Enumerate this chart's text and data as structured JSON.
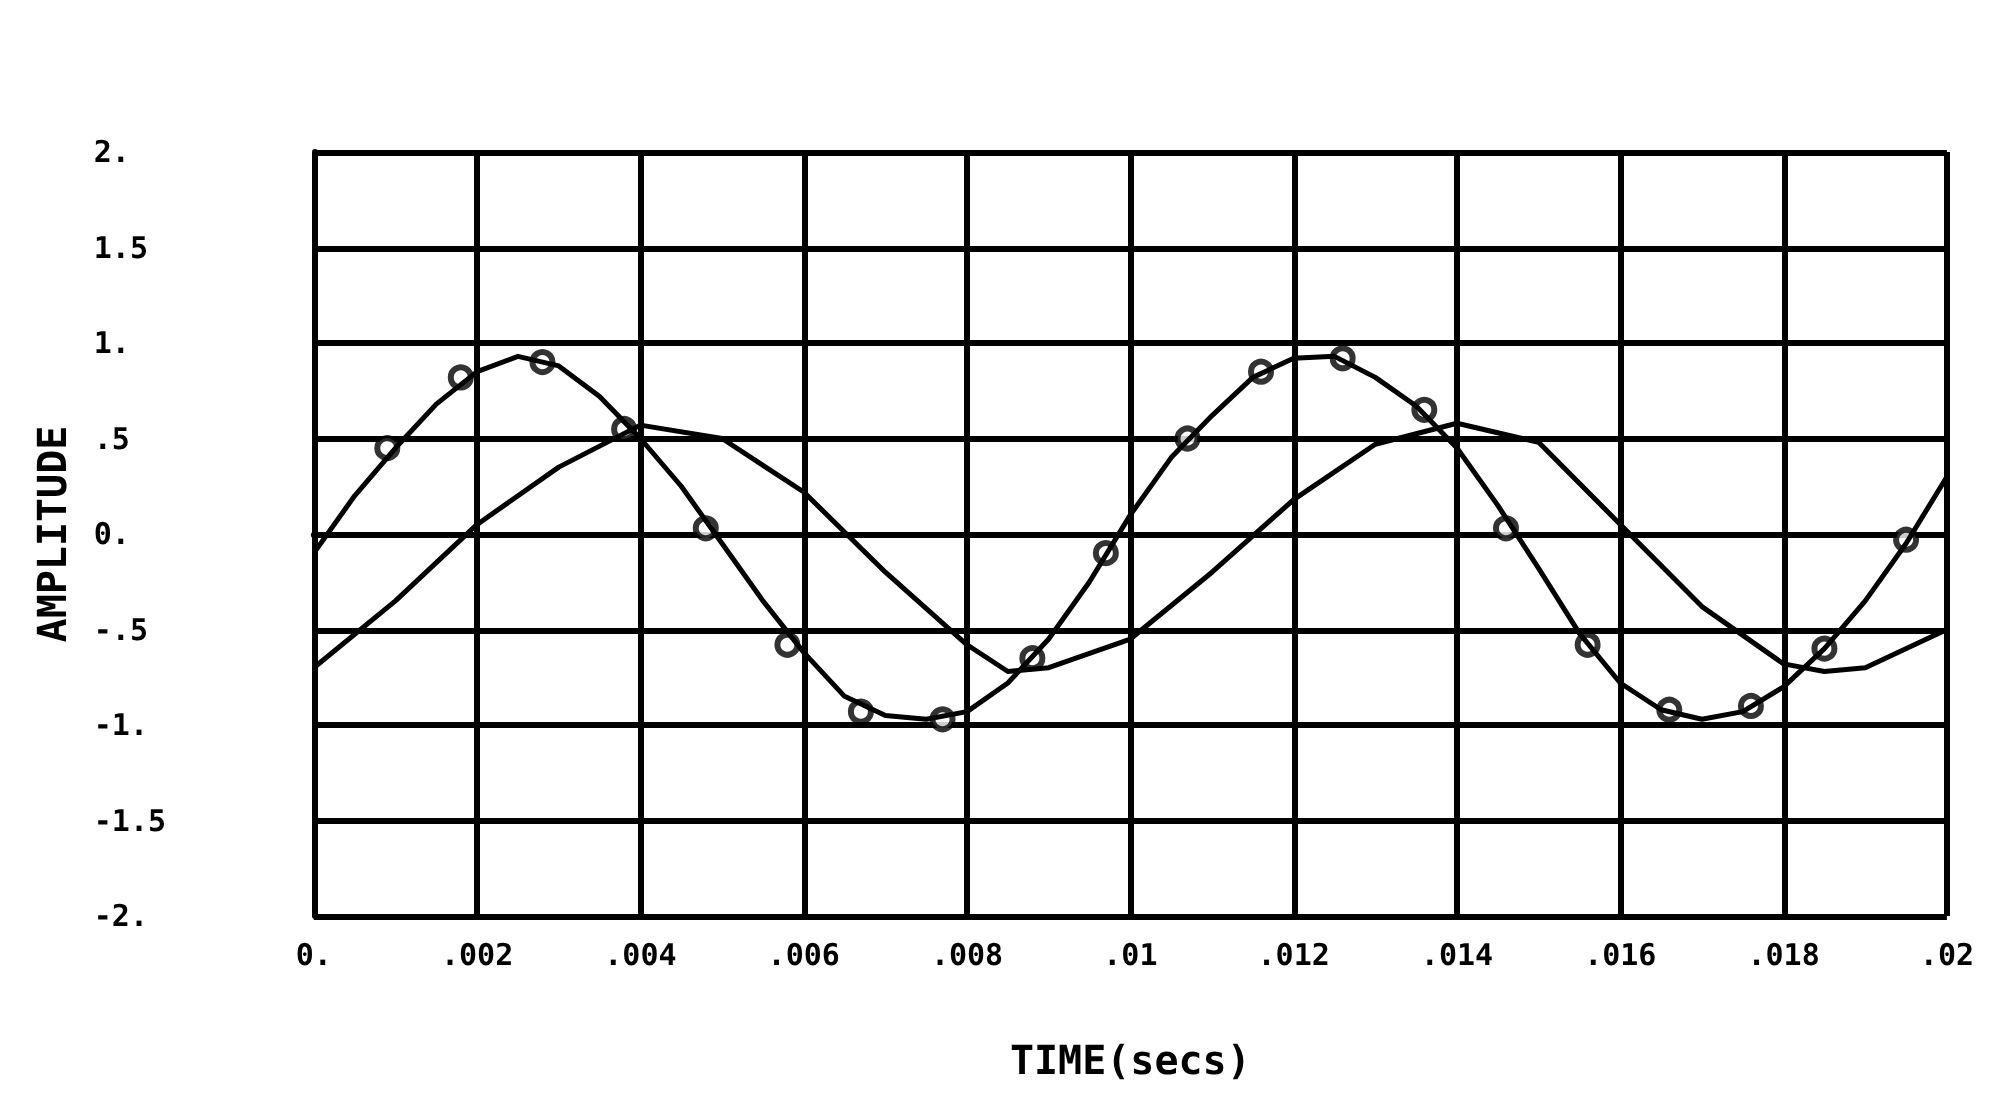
{
  "chart_data": {
    "type": "line",
    "xlabel": "TIME(secs)",
    "ylabel": "AMPLITUDE",
    "xlim": [
      0,
      0.02
    ],
    "ylim": [
      -2,
      2
    ],
    "xticks": [
      {
        "value": 0,
        "label": "0."
      },
      {
        "value": 0.002,
        "label": ".002"
      },
      {
        "value": 0.004,
        "label": ".004"
      },
      {
        "value": 0.006,
        "label": ".006"
      },
      {
        "value": 0.008,
        "label": ".008"
      },
      {
        "value": 0.01,
        "label": ".01"
      },
      {
        "value": 0.012,
        "label": ".012"
      },
      {
        "value": 0.014,
        "label": ".014"
      },
      {
        "value": 0.016,
        "label": ".016"
      },
      {
        "value": 0.018,
        "label": ".018"
      },
      {
        "value": 0.02,
        "label": ".02"
      }
    ],
    "yticks": [
      {
        "value": -2,
        "label": "-2."
      },
      {
        "value": -1.5,
        "label": "-1.5"
      },
      {
        "value": -1,
        "label": "-1."
      },
      {
        "value": -0.5,
        "label": "-.5"
      },
      {
        "value": 0,
        "label": "0."
      },
      {
        "value": 0.5,
        "label": ".5"
      },
      {
        "value": 1,
        "label": "1."
      },
      {
        "value": 1.5,
        "label": "1.5"
      },
      {
        "value": 2,
        "label": "2."
      }
    ],
    "grid": true,
    "series": [
      {
        "type": "line",
        "color": "#000000",
        "x": [
          0,
          0.0005,
          0.001,
          0.0015,
          0.002,
          0.0025,
          0.003,
          0.0035,
          0.004,
          0.0045,
          0.005,
          0.0055,
          0.006,
          0.0065,
          0.007,
          0.0075,
          0.008,
          0.0085,
          0.009,
          0.0095,
          0.01,
          0.0105,
          0.011,
          0.0115,
          0.012,
          0.0125,
          0.013,
          0.0135,
          0.014,
          0.0145,
          0.015,
          0.0155,
          0.016,
          0.0165,
          0.017,
          0.0175,
          0.018,
          0.0185,
          0.019,
          0.0195,
          0.02
        ],
        "values": [
          -0.1,
          0.2,
          0.45,
          0.68,
          0.85,
          0.93,
          0.88,
          0.72,
          0.5,
          0.25,
          -0.05,
          -0.35,
          -0.62,
          -0.85,
          -0.95,
          -0.97,
          -0.93,
          -0.78,
          -0.55,
          -0.25,
          0.1,
          0.4,
          0.62,
          0.82,
          0.92,
          0.93,
          0.82,
          0.67,
          0.45,
          0.15,
          -0.18,
          -0.52,
          -0.78,
          -0.92,
          -0.97,
          -0.93,
          -0.8,
          -0.6,
          -0.35,
          -0.05,
          0.3
        ]
      },
      {
        "type": "scatter",
        "color": "#000000",
        "marker": "circle",
        "x": [
          0.0009,
          0.0018,
          0.0028,
          0.0038,
          0.0048,
          0.0058,
          0.0067,
          0.0077,
          0.0088,
          0.0097,
          0.0107,
          0.0116,
          0.0126,
          0.0136,
          0.0146,
          0.0156,
          0.0166,
          0.0176,
          0.0185,
          0.0195
        ],
        "values": [
          0.45,
          0.82,
          0.9,
          0.55,
          0.03,
          -0.58,
          -0.93,
          -0.97,
          -0.65,
          -0.1,
          0.5,
          0.85,
          0.92,
          0.65,
          0.03,
          -0.58,
          -0.92,
          -0.9,
          -0.6,
          -0.03
        ]
      },
      {
        "type": "line",
        "color": "#000000",
        "x": [
          0,
          0.001,
          0.002,
          0.003,
          0.004,
          0.005,
          0.006,
          0.007,
          0.008,
          0.0085,
          0.009,
          0.01,
          0.011,
          0.012,
          0.013,
          0.014,
          0.015,
          0.016,
          0.017,
          0.018,
          0.0185,
          0.019,
          0.02
        ],
        "values": [
          -0.7,
          -0.35,
          0.05,
          0.35,
          0.57,
          0.5,
          0.22,
          -0.2,
          -0.58,
          -0.72,
          -0.7,
          -0.55,
          -0.2,
          0.18,
          0.47,
          0.58,
          0.48,
          0.05,
          -0.38,
          -0.68,
          -0.72,
          -0.7,
          -0.5
        ]
      }
    ]
  }
}
